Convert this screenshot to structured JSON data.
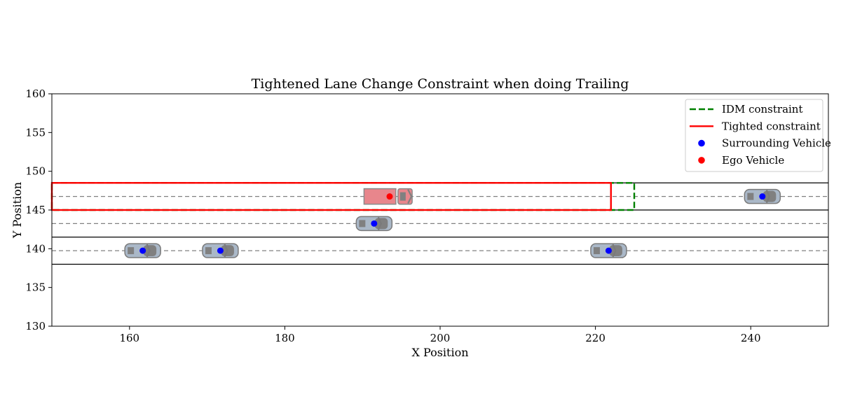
{
  "chart_data": {
    "type": "scatter",
    "title": "Tightened Lane Change Constraint when doing Trailing",
    "xlabel": "X Position",
    "ylabel": "Y Position",
    "xlim": [
      150,
      250
    ],
    "ylim": [
      130,
      160
    ],
    "xticks": [
      160,
      180,
      200,
      220,
      240
    ],
    "yticks": [
      130,
      135,
      140,
      145,
      150,
      155,
      160
    ],
    "grid": false,
    "legend_position": "top-right",
    "lane_boundaries_y": [
      148.5,
      145,
      141.5,
      138
    ],
    "lane_centers_y": [
      146.75,
      143.25,
      139.75
    ],
    "legend": [
      {
        "label": "IDM constraint",
        "kind": "dashed-line",
        "color": "#008000"
      },
      {
        "label": "Tighted constraint",
        "kind": "line",
        "color": "#ff0000"
      },
      {
        "label": "Surrounding Vehicle",
        "kind": "dot",
        "color": "#0000ff"
      },
      {
        "label": "Ego Vehicle",
        "kind": "dot",
        "color": "#ff0000"
      }
    ],
    "idm_constraint": {
      "x_start": 150,
      "x_end": 225,
      "y_low": 145,
      "y_high": 148.5,
      "color": "#008000"
    },
    "tightened_constraint": {
      "x_start": 150,
      "x_end": 222,
      "y_low": 145,
      "y_high": 148.5,
      "color": "#ff0000"
    },
    "ego_vehicle": {
      "x": 193.5,
      "y": 146.75,
      "color": "#ff0000",
      "body_color": "#e8868c"
    },
    "surrounding_vehicles": [
      {
        "x": 241.5,
        "y": 146.75
      },
      {
        "x": 191.5,
        "y": 143.25
      },
      {
        "x": 161.7,
        "y": 139.75
      },
      {
        "x": 171.7,
        "y": 139.75
      },
      {
        "x": 221.7,
        "y": 139.75
      }
    ],
    "surrounding_color": "#0000ff",
    "surrounding_body_color": "#aab8c8"
  }
}
